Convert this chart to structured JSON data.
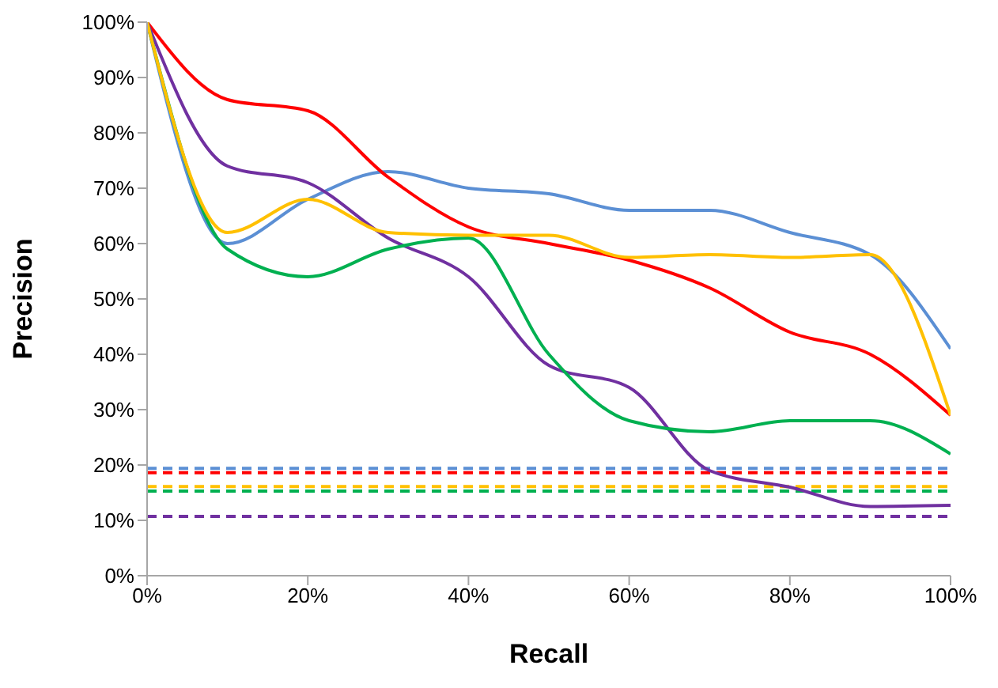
{
  "chart_data": {
    "type": "line",
    "xlabel": "Recall",
    "ylabel": "Precision",
    "x": [
      0,
      10,
      20,
      30,
      40,
      50,
      60,
      70,
      80,
      90,
      100
    ],
    "series": [
      {
        "color": "#5b8fd4",
        "values": [
          100,
          60,
          68,
          73,
          70,
          69,
          66,
          66,
          62,
          58,
          41
        ]
      },
      {
        "color": "#ff0000",
        "values": [
          100,
          86,
          84,
          72,
          63,
          60,
          57,
          52,
          44,
          40,
          29
        ]
      },
      {
        "color": "#7030a0",
        "values": [
          100,
          74,
          71,
          61,
          54,
          38,
          34,
          19,
          16,
          12.5,
          12.7
        ]
      },
      {
        "color": "#00b050",
        "values": [
          100,
          59,
          54,
          59,
          61,
          40,
          28,
          26,
          28,
          28,
          22
        ]
      },
      {
        "color": "#ffc000",
        "values": [
          100,
          62,
          68,
          62,
          61.5,
          61.5,
          57.5,
          58,
          57.5,
          58,
          29
        ]
      }
    ],
    "ref_lines": [
      {
        "axis": "y",
        "value": 19.4,
        "color": "#5b8fd4",
        "line_style": "dashed"
      },
      {
        "axis": "y",
        "value": 18.6,
        "color": "#ff0000",
        "line_style": "dashed"
      },
      {
        "axis": "y",
        "value": 16.1,
        "color": "#ffc000",
        "line_style": "dashed"
      },
      {
        "axis": "y",
        "value": 15.3,
        "color": "#00b050",
        "line_style": "dashed"
      },
      {
        "axis": "y",
        "value": 10.7,
        "color": "#7030a0",
        "line_style": "dashed"
      }
    ],
    "xlim": [
      0,
      100
    ],
    "ylim": [
      0,
      100
    ],
    "xticks": [
      {
        "value": 0,
        "label": "0%"
      },
      {
        "value": 20,
        "label": "20%"
      },
      {
        "value": 40,
        "label": "40%"
      },
      {
        "value": 60,
        "label": "60%"
      },
      {
        "value": 80,
        "label": "80%"
      },
      {
        "value": 100,
        "label": "100%"
      }
    ],
    "yticks": [
      {
        "value": 0,
        "label": "0%"
      },
      {
        "value": 10,
        "label": "10%"
      },
      {
        "value": 20,
        "label": "20%"
      },
      {
        "value": 30,
        "label": "30%"
      },
      {
        "value": 40,
        "label": "40%"
      },
      {
        "value": 50,
        "label": "50%"
      },
      {
        "value": 60,
        "label": "60%"
      },
      {
        "value": 70,
        "label": "70%"
      },
      {
        "value": 80,
        "label": "80%"
      },
      {
        "value": 90,
        "label": "90%"
      },
      {
        "value": 100,
        "label": "100%"
      }
    ],
    "grid": false,
    "legend": false,
    "marker": "none",
    "line_style": "solid"
  }
}
